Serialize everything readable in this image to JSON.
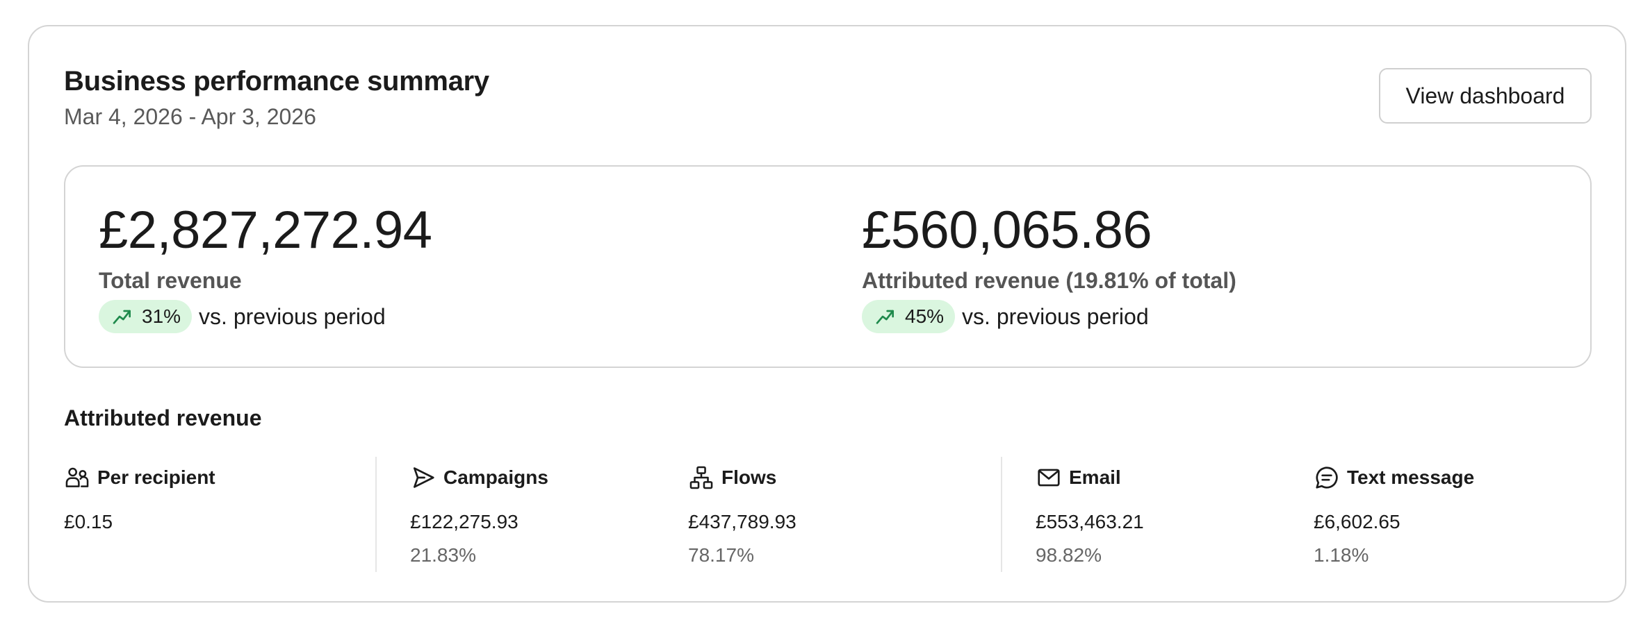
{
  "header": {
    "title": "Business performance summary",
    "date_range": "Mar 4, 2026 - Apr 3, 2026",
    "view_button": "View dashboard"
  },
  "summary": {
    "total": {
      "value": "£2,827,272.94",
      "label": "Total revenue",
      "change": "31%",
      "change_suffix": "vs. previous period",
      "trend_icon": "trending-up-icon"
    },
    "attributed": {
      "value": "£560,065.86",
      "label": "Attributed revenue (19.81% of total)",
      "change": "45%",
      "change_suffix": "vs. previous period",
      "trend_icon": "trending-up-icon"
    }
  },
  "attributed_section": {
    "title": "Attributed revenue",
    "columns": [
      {
        "icon": "users-icon",
        "name": "Per recipient",
        "value": "£0.15",
        "pct": ""
      },
      {
        "icon": "send-icon",
        "name": "Campaigns",
        "value": "£122,275.93",
        "pct": "21.83%"
      },
      {
        "icon": "flow-icon",
        "name": "Flows",
        "value": "£437,789.93",
        "pct": "78.17%"
      },
      {
        "icon": "mail-icon",
        "name": "Email",
        "value": "£553,463.21",
        "pct": "98.82%"
      },
      {
        "icon": "message-icon",
        "name": "Text message",
        "value": "£6,602.65",
        "pct": "1.18%"
      }
    ]
  },
  "colors": {
    "positive_pill_bg": "#daf6df",
    "positive_icon": "#1f8a4c",
    "border": "#d4d4d4"
  }
}
